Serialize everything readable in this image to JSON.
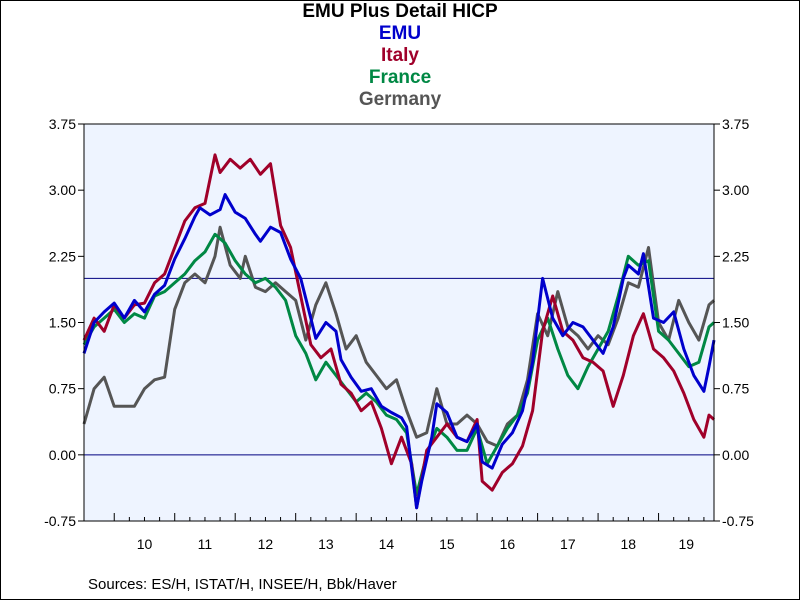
{
  "chart_data": {
    "type": "line",
    "title": "EMU Plus Detail HICP",
    "x_range": [
      "2009-07",
      "2019-12"
    ],
    "x_tick_labels": [
      "10",
      "11",
      "12",
      "13",
      "14",
      "15",
      "16",
      "17",
      "18",
      "19"
    ],
    "ylim": [
      -0.75,
      3.75
    ],
    "y_ticks": [
      "-0.75",
      "0.00",
      "0.75",
      "1.50",
      "2.25",
      "3.00",
      "3.75"
    ],
    "reference_lines": [
      2.0,
      0.0
    ],
    "grid": false,
    "legend_placement": "top-center",
    "plot_background": "#eef4ff",
    "series": [
      {
        "name": "EMU",
        "color": "#0000cc",
        "points": [
          [
            "2009-07",
            1.15
          ],
          [
            "2009-09",
            1.5
          ],
          [
            "2009-11",
            1.62
          ],
          [
            "2010-01",
            1.72
          ],
          [
            "2010-03",
            1.55
          ],
          [
            "2010-05",
            1.75
          ],
          [
            "2010-07",
            1.62
          ],
          [
            "2010-09",
            1.82
          ],
          [
            "2010-11",
            1.92
          ],
          [
            "2011-01",
            2.22
          ],
          [
            "2011-03",
            2.45
          ],
          [
            "2011-05",
            2.7
          ],
          [
            "2011-06",
            2.8
          ],
          [
            "2011-08",
            2.72
          ],
          [
            "2011-10",
            2.78
          ],
          [
            "2011-11",
            2.95
          ],
          [
            "2012-01",
            2.75
          ],
          [
            "2012-03",
            2.68
          ],
          [
            "2012-05",
            2.5
          ],
          [
            "2012-06",
            2.42
          ],
          [
            "2012-08",
            2.58
          ],
          [
            "2012-10",
            2.52
          ],
          [
            "2012-12",
            2.22
          ],
          [
            "2013-02",
            2.0
          ],
          [
            "2013-04",
            1.55
          ],
          [
            "2013-05",
            1.32
          ],
          [
            "2013-07",
            1.5
          ],
          [
            "2013-09",
            1.4
          ],
          [
            "2013-10",
            1.08
          ],
          [
            "2013-12",
            0.88
          ],
          [
            "2014-02",
            0.72
          ],
          [
            "2014-04",
            0.75
          ],
          [
            "2014-06",
            0.55
          ],
          [
            "2014-08",
            0.48
          ],
          [
            "2014-10",
            0.42
          ],
          [
            "2014-11",
            0.32
          ],
          [
            "2015-01",
            -0.6
          ],
          [
            "2015-02",
            -0.3
          ],
          [
            "2015-04",
            0.2
          ],
          [
            "2015-05",
            0.58
          ],
          [
            "2015-07",
            0.48
          ],
          [
            "2015-09",
            0.2
          ],
          [
            "2015-11",
            0.15
          ],
          [
            "2016-01",
            0.35
          ],
          [
            "2016-02",
            -0.08
          ],
          [
            "2016-04",
            -0.15
          ],
          [
            "2016-06",
            0.12
          ],
          [
            "2016-08",
            0.25
          ],
          [
            "2016-10",
            0.5
          ],
          [
            "2016-12",
            1.05
          ],
          [
            "2017-02",
            2.0
          ],
          [
            "2017-04",
            1.55
          ],
          [
            "2017-06",
            1.35
          ],
          [
            "2017-08",
            1.5
          ],
          [
            "2017-10",
            1.45
          ],
          [
            "2017-12",
            1.3
          ],
          [
            "2018-02",
            1.15
          ],
          [
            "2018-04",
            1.45
          ],
          [
            "2018-06",
            2.0
          ],
          [
            "2018-07",
            2.15
          ],
          [
            "2018-09",
            2.05
          ],
          [
            "2018-10",
            2.28
          ],
          [
            "2018-12",
            1.55
          ],
          [
            "2019-02",
            1.5
          ],
          [
            "2019-04",
            1.62
          ],
          [
            "2019-06",
            1.2
          ],
          [
            "2019-08",
            0.9
          ],
          [
            "2019-10",
            0.72
          ],
          [
            "2019-11",
            1.0
          ],
          [
            "2019-12",
            1.3
          ]
        ]
      },
      {
        "name": "Italy",
        "color": "#a0002a",
        "points": [
          [
            "2009-07",
            1.3
          ],
          [
            "2009-09",
            1.55
          ],
          [
            "2009-11",
            1.4
          ],
          [
            "2010-01",
            1.7
          ],
          [
            "2010-03",
            1.55
          ],
          [
            "2010-05",
            1.7
          ],
          [
            "2010-07",
            1.72
          ],
          [
            "2010-09",
            1.95
          ],
          [
            "2010-11",
            2.05
          ],
          [
            "2011-01",
            2.35
          ],
          [
            "2011-03",
            2.65
          ],
          [
            "2011-05",
            2.8
          ],
          [
            "2011-07",
            2.85
          ],
          [
            "2011-09",
            3.4
          ],
          [
            "2011-10",
            3.2
          ],
          [
            "2011-12",
            3.35
          ],
          [
            "2012-02",
            3.25
          ],
          [
            "2012-04",
            3.35
          ],
          [
            "2012-06",
            3.18
          ],
          [
            "2012-08",
            3.3
          ],
          [
            "2012-10",
            2.6
          ],
          [
            "2012-12",
            2.35
          ],
          [
            "2013-02",
            1.8
          ],
          [
            "2013-04",
            1.25
          ],
          [
            "2013-06",
            1.1
          ],
          [
            "2013-08",
            1.2
          ],
          [
            "2013-10",
            0.8
          ],
          [
            "2013-12",
            0.7
          ],
          [
            "2014-02",
            0.5
          ],
          [
            "2014-04",
            0.6
          ],
          [
            "2014-06",
            0.3
          ],
          [
            "2014-08",
            -0.1
          ],
          [
            "2014-10",
            0.2
          ],
          [
            "2014-12",
            -0.1
          ],
          [
            "2015-01",
            -0.6
          ],
          [
            "2015-03",
            0.05
          ],
          [
            "2015-05",
            0.2
          ],
          [
            "2015-07",
            0.35
          ],
          [
            "2015-09",
            0.2
          ],
          [
            "2015-11",
            0.15
          ],
          [
            "2016-01",
            0.4
          ],
          [
            "2016-02",
            -0.3
          ],
          [
            "2016-04",
            -0.4
          ],
          [
            "2016-06",
            -0.2
          ],
          [
            "2016-08",
            -0.1
          ],
          [
            "2016-10",
            0.1
          ],
          [
            "2016-12",
            0.5
          ],
          [
            "2017-02",
            1.4
          ],
          [
            "2017-04",
            1.8
          ],
          [
            "2017-06",
            1.4
          ],
          [
            "2017-08",
            1.3
          ],
          [
            "2017-10",
            1.1
          ],
          [
            "2017-12",
            1.05
          ],
          [
            "2018-02",
            0.95
          ],
          [
            "2018-04",
            0.55
          ],
          [
            "2018-06",
            0.9
          ],
          [
            "2018-08",
            1.35
          ],
          [
            "2018-10",
            1.6
          ],
          [
            "2018-12",
            1.2
          ],
          [
            "2019-02",
            1.1
          ],
          [
            "2019-04",
            0.95
          ],
          [
            "2019-06",
            0.7
          ],
          [
            "2019-08",
            0.4
          ],
          [
            "2019-10",
            0.2
          ],
          [
            "2019-11",
            0.45
          ],
          [
            "2019-12",
            0.4
          ]
        ]
      },
      {
        "name": "France",
        "color": "#008844",
        "points": [
          [
            "2009-07",
            1.25
          ],
          [
            "2009-09",
            1.45
          ],
          [
            "2009-11",
            1.55
          ],
          [
            "2010-01",
            1.65
          ],
          [
            "2010-03",
            1.5
          ],
          [
            "2010-05",
            1.6
          ],
          [
            "2010-07",
            1.55
          ],
          [
            "2010-09",
            1.8
          ],
          [
            "2010-11",
            1.85
          ],
          [
            "2011-01",
            1.95
          ],
          [
            "2011-03",
            2.05
          ],
          [
            "2011-05",
            2.2
          ],
          [
            "2011-07",
            2.3
          ],
          [
            "2011-09",
            2.5
          ],
          [
            "2011-11",
            2.4
          ],
          [
            "2012-01",
            2.2
          ],
          [
            "2012-03",
            2.05
          ],
          [
            "2012-05",
            1.95
          ],
          [
            "2012-07",
            2.0
          ],
          [
            "2012-09",
            1.9
          ],
          [
            "2012-11",
            1.75
          ],
          [
            "2013-01",
            1.35
          ],
          [
            "2013-03",
            1.15
          ],
          [
            "2013-05",
            0.85
          ],
          [
            "2013-07",
            1.05
          ],
          [
            "2013-09",
            0.9
          ],
          [
            "2013-11",
            0.75
          ],
          [
            "2014-01",
            0.6
          ],
          [
            "2014-03",
            0.7
          ],
          [
            "2014-05",
            0.6
          ],
          [
            "2014-07",
            0.45
          ],
          [
            "2014-09",
            0.4
          ],
          [
            "2014-11",
            0.25
          ],
          [
            "2015-01",
            -0.45
          ],
          [
            "2015-03",
            0.0
          ],
          [
            "2015-05",
            0.3
          ],
          [
            "2015-07",
            0.2
          ],
          [
            "2015-09",
            0.05
          ],
          [
            "2015-11",
            0.05
          ],
          [
            "2016-01",
            0.3
          ],
          [
            "2016-03",
            -0.1
          ],
          [
            "2016-05",
            0.1
          ],
          [
            "2016-07",
            0.3
          ],
          [
            "2016-09",
            0.45
          ],
          [
            "2016-11",
            0.7
          ],
          [
            "2017-01",
            1.3
          ],
          [
            "2017-03",
            1.55
          ],
          [
            "2017-05",
            1.2
          ],
          [
            "2017-07",
            0.9
          ],
          [
            "2017-09",
            0.75
          ],
          [
            "2017-11",
            1.0
          ],
          [
            "2018-01",
            1.2
          ],
          [
            "2018-03",
            1.4
          ],
          [
            "2018-05",
            1.8
          ],
          [
            "2018-07",
            2.25
          ],
          [
            "2018-09",
            2.15
          ],
          [
            "2018-11",
            2.2
          ],
          [
            "2019-01",
            1.4
          ],
          [
            "2019-03",
            1.3
          ],
          [
            "2019-05",
            1.15
          ],
          [
            "2019-07",
            1.0
          ],
          [
            "2019-09",
            1.05
          ],
          [
            "2019-11",
            1.45
          ],
          [
            "2019-12",
            1.5
          ]
        ]
      },
      {
        "name": "Germany",
        "color": "#555555",
        "points": [
          [
            "2009-07",
            0.35
          ],
          [
            "2009-09",
            0.75
          ],
          [
            "2009-11",
            0.88
          ],
          [
            "2010-01",
            0.55
          ],
          [
            "2010-03",
            0.55
          ],
          [
            "2010-05",
            0.55
          ],
          [
            "2010-07",
            0.75
          ],
          [
            "2010-09",
            0.85
          ],
          [
            "2010-11",
            0.88
          ],
          [
            "2011-01",
            1.65
          ],
          [
            "2011-03",
            1.95
          ],
          [
            "2011-05",
            2.05
          ],
          [
            "2011-07",
            1.95
          ],
          [
            "2011-09",
            2.25
          ],
          [
            "2011-10",
            2.58
          ],
          [
            "2011-12",
            2.15
          ],
          [
            "2012-02",
            2.0
          ],
          [
            "2012-03",
            2.25
          ],
          [
            "2012-05",
            1.9
          ],
          [
            "2012-07",
            1.85
          ],
          [
            "2012-09",
            1.95
          ],
          [
            "2012-11",
            1.85
          ],
          [
            "2013-01",
            1.75
          ],
          [
            "2013-03",
            1.3
          ],
          [
            "2013-05",
            1.7
          ],
          [
            "2013-07",
            1.95
          ],
          [
            "2013-09",
            1.6
          ],
          [
            "2013-11",
            1.2
          ],
          [
            "2014-01",
            1.35
          ],
          [
            "2014-03",
            1.05
          ],
          [
            "2014-05",
            0.9
          ],
          [
            "2014-07",
            0.75
          ],
          [
            "2014-09",
            0.85
          ],
          [
            "2014-11",
            0.5
          ],
          [
            "2015-01",
            0.2
          ],
          [
            "2015-03",
            0.25
          ],
          [
            "2015-05",
            0.75
          ],
          [
            "2015-07",
            0.35
          ],
          [
            "2015-09",
            0.35
          ],
          [
            "2015-11",
            0.45
          ],
          [
            "2016-01",
            0.35
          ],
          [
            "2016-03",
            0.15
          ],
          [
            "2016-05",
            0.1
          ],
          [
            "2016-07",
            0.35
          ],
          [
            "2016-09",
            0.45
          ],
          [
            "2016-11",
            0.85
          ],
          [
            "2017-01",
            1.6
          ],
          [
            "2017-03",
            1.35
          ],
          [
            "2017-05",
            1.85
          ],
          [
            "2017-07",
            1.45
          ],
          [
            "2017-09",
            1.35
          ],
          [
            "2017-11",
            1.2
          ],
          [
            "2018-01",
            1.35
          ],
          [
            "2018-03",
            1.25
          ],
          [
            "2018-05",
            1.55
          ],
          [
            "2018-07",
            1.95
          ],
          [
            "2018-09",
            1.9
          ],
          [
            "2018-11",
            2.35
          ],
          [
            "2019-01",
            1.5
          ],
          [
            "2019-03",
            1.3
          ],
          [
            "2019-05",
            1.75
          ],
          [
            "2019-07",
            1.5
          ],
          [
            "2019-09",
            1.3
          ],
          [
            "2019-11",
            1.7
          ],
          [
            "2019-12",
            1.75
          ]
        ]
      }
    ],
    "source": "Sources:  ES/H, ISTAT/H, INSEE/H, Bbk/Haver"
  }
}
